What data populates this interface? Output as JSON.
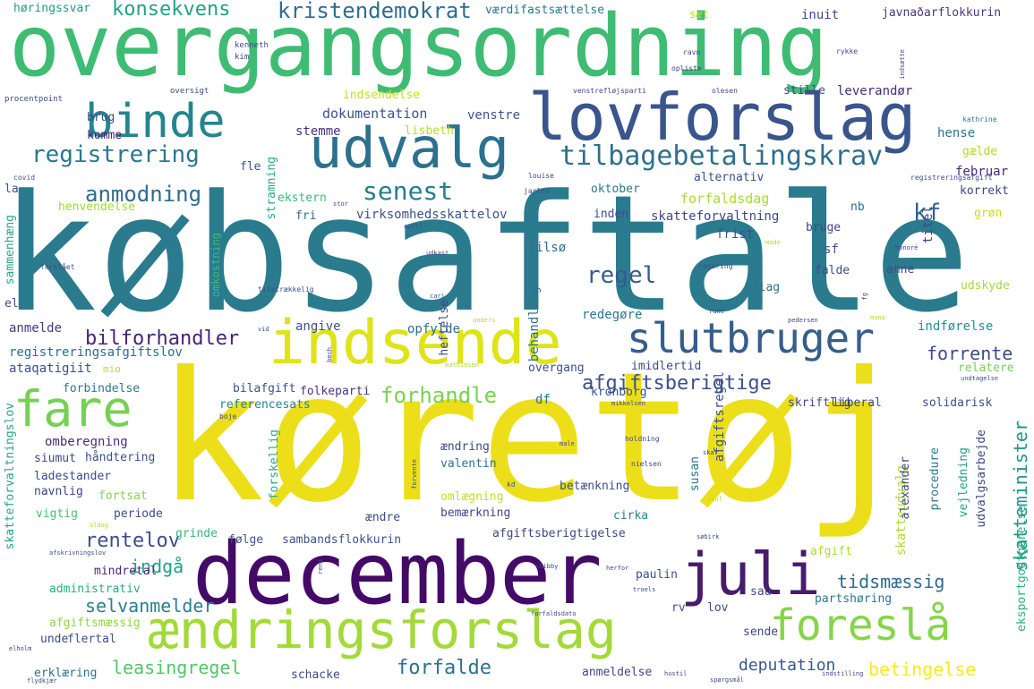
{
  "words": [
    {
      "text": "købsaftale",
      "color": "#2a7b8e"
    },
    {
      "text": "køretøj",
      "color": "#ecdf1a"
    },
    {
      "text": "overgangsordning",
      "color": "#3fbc73"
    },
    {
      "text": "december",
      "color": "#440a68"
    },
    {
      "text": "lovforslag",
      "color": "#39558c"
    },
    {
      "text": "ændringsforslag",
      "color": "#a2da37"
    },
    {
      "text": "indsende",
      "color": "#dfe318"
    },
    {
      "text": "udvalg",
      "color": "#2c718e"
    },
    {
      "text": "binde",
      "color": "#25858e"
    },
    {
      "text": "juli",
      "color": "#481b6d"
    },
    {
      "text": "foreslå",
      "color": "#86d549"
    },
    {
      "text": "slutbruger",
      "color": "#355e8d"
    },
    {
      "text": "fare",
      "color": "#75d054"
    },
    {
      "text": "tilbagebetalingskrav",
      "color": "#2d708e"
    },
    {
      "text": "registrering",
      "color": "#2a788e"
    },
    {
      "text": "kristendemokrat",
      "color": "#2e6e8e"
    },
    {
      "text": "konsekvens",
      "color": "#20a386"
    },
    {
      "text": "anmodning",
      "color": "#2f6c8e"
    },
    {
      "text": "senest",
      "color": "#287c8e"
    },
    {
      "text": "kf",
      "color": "#33628d"
    },
    {
      "text": "regel",
      "color": "#365c8d"
    },
    {
      "text": "forhandle",
      "color": "#7ad151"
    },
    {
      "text": "afgiftsberigtige",
      "color": "#3b518b"
    },
    {
      "text": "forrente",
      "color": "#3e4a89"
    },
    {
      "text": "bilforhandler",
      "color": "#482475"
    },
    {
      "text": "rentelov",
      "color": "#3d4d8a"
    },
    {
      "text": "indgå",
      "color": "#1fa187"
    },
    {
      "text": "selvanmelder",
      "color": "#27808e"
    },
    {
      "text": "tidsmæssig",
      "color": "#2f6b8e"
    },
    {
      "text": "skatteminister",
      "color": "#1f968b"
    },
    {
      "text": "leasingregel",
      "color": "#52c569"
    },
    {
      "text": "forfalde",
      "color": "#2d718e"
    },
    {
      "text": "betingelse",
      "color": "#fde725"
    },
    {
      "text": "deputation",
      "color": "#38588c"
    },
    {
      "text": "dokumentation",
      "color": "#3a548c"
    },
    {
      "text": "stemme",
      "color": "#472f7d"
    },
    {
      "text": "lisbeth",
      "color": "#b5de2b"
    },
    {
      "text": "venstre",
      "color": "#3b528b"
    },
    {
      "text": "høringssvar",
      "color": "#1e9b8a"
    },
    {
      "text": "værdifastsættelse",
      "color": "#2a788e"
    },
    {
      "text": "sæt",
      "color": "#b8de29"
    },
    {
      "text": "inuit",
      "color": "#3e4989"
    },
    {
      "text": "javnaðarflokkurin",
      "color": "#453781"
    },
    {
      "text": "indsendelse",
      "color": "#c2df23"
    },
    {
      "text": "stille",
      "color": "#404688"
    },
    {
      "text": "leverandør",
      "color": "#472c7a"
    },
    {
      "text": "brug",
      "color": "#3e4989"
    },
    {
      "text": "komme",
      "color": "#482173"
    },
    {
      "text": "hense",
      "color": "#2c738e"
    },
    {
      "text": "gælde",
      "color": "#addc30"
    },
    {
      "text": "februar",
      "color": "#482878"
    },
    {
      "text": "korrekt",
      "color": "#3f4788"
    },
    {
      "text": "alternativ",
      "color": "#3c4f8a"
    },
    {
      "text": "oktober",
      "color": "#2a788e"
    },
    {
      "text": "forfaldsdag",
      "color": "#a8db34"
    },
    {
      "text": "skatteforvaltning",
      "color": "#404588"
    },
    {
      "text": "virksomhedsskattelov",
      "color": "#3b528b"
    },
    {
      "text": "henvendelse",
      "color": "#9fda3a"
    },
    {
      "text": "ekstern",
      "color": "#3bbb75"
    },
    {
      "text": "stramning",
      "color": "#25ac82"
    },
    {
      "text": "fri",
      "color": "#2d708e"
    },
    {
      "text": "inden",
      "color": "#3e4c8a"
    },
    {
      "text": "titel",
      "color": "#3f4889"
    },
    {
      "text": "grøn",
      "color": "#c5e021"
    },
    {
      "text": "nb",
      "color": "#31688e"
    },
    {
      "text": "bruge",
      "color": "#3e4989"
    },
    {
      "text": "frist",
      "color": "#3b528b"
    },
    {
      "text": "sf",
      "color": "#3b528b"
    },
    {
      "text": "falde",
      "color": "#3e4a89"
    },
    {
      "text": "anne",
      "color": "#3e4a89"
    },
    {
      "text": "filsø",
      "color": "#2e6e8e"
    },
    {
      "text": "bilag",
      "color": "#2c728e"
    },
    {
      "text": "udskyde",
      "color": "#a5db36"
    },
    {
      "text": "heftelse",
      "color": "#404588"
    },
    {
      "text": "behandling",
      "color": "#2c728e"
    },
    {
      "text": "redegøre",
      "color": "#2a788e"
    },
    {
      "text": "indførelse",
      "color": "#20928c"
    },
    {
      "text": "angive",
      "color": "#3b528b"
    },
    {
      "text": "opfylde",
      "color": "#2e6f8e"
    },
    {
      "text": "anmelde",
      "color": "#453882"
    },
    {
      "text": "registreringsafgiftslov",
      "color": "#2e6d8e"
    },
    {
      "text": "ataqatigiit",
      "color": "#3c4f8a"
    },
    {
      "text": "overgang",
      "color": "#3c508b"
    },
    {
      "text": "imidlertid",
      "color": "#3f4889"
    },
    {
      "text": "relatere",
      "color": "#75d054"
    },
    {
      "text": "forbindelse",
      "color": "#2a788e"
    },
    {
      "text": "bilafgift",
      "color": "#3b528b"
    },
    {
      "text": "folkeparti",
      "color": "#453781"
    },
    {
      "text": "df",
      "color": "#2a768e"
    },
    {
      "text": "kronborg",
      "color": "#3b528b"
    },
    {
      "text": "referencesats",
      "color": "#25838e"
    },
    {
      "text": "skriftlig",
      "color": "#3e4989"
    },
    {
      "text": "liberal",
      "color": "#3f4788"
    },
    {
      "text": "solidarisk",
      "color": "#3c4f8a"
    },
    {
      "text": "skatteforvaltningslov",
      "color": "#22a785"
    },
    {
      "text": "omberegning",
      "color": "#472d7b"
    },
    {
      "text": "håndtering",
      "color": "#3b528b"
    },
    {
      "text": "siumut",
      "color": "#3f4889"
    },
    {
      "text": "ladestander",
      "color": "#3e4a89"
    },
    {
      "text": "navnlig",
      "color": "#3f4788"
    },
    {
      "text": "fortsat",
      "color": "#81d34d"
    },
    {
      "text": "vigtig",
      "color": "#4ac16d"
    },
    {
      "text": "periode",
      "color": "#3e4a89"
    },
    {
      "text": "ændring",
      "color": "#3e4989"
    },
    {
      "text": "valentin",
      "color": "#2c738e"
    },
    {
      "text": "omlægning",
      "color": "#c2df23"
    },
    {
      "text": "bemærkning",
      "color": "#3f4788"
    },
    {
      "text": "ændre",
      "color": "#3e4a89"
    },
    {
      "text": "cirka",
      "color": "#25858e"
    },
    {
      "text": "betænkning",
      "color": "#3d4e8a"
    },
    {
      "text": "afgiftsregel",
      "color": "#3b528b"
    },
    {
      "text": "skatteudvalg",
      "color": "#addc30"
    },
    {
      "text": "alexander",
      "color": "#3f4889"
    },
    {
      "text": "udvalgsarbejde",
      "color": "#3e4989"
    },
    {
      "text": "procedure",
      "color": "#2a788e"
    },
    {
      "text": "vejledning",
      "color": "#20a386"
    },
    {
      "text": "forskellig",
      "color": "#25ab82"
    },
    {
      "text": "susan",
      "color": "#2c738e"
    },
    {
      "text": "grinde",
      "color": "#35b779"
    },
    {
      "text": "følge",
      "color": "#3b528b"
    },
    {
      "text": "sambandsflokkurin",
      "color": "#3b528b"
    },
    {
      "text": "afgiftsberigtigelse",
      "color": "#3f4788"
    },
    {
      "text": "mindretal",
      "color": "#482677"
    },
    {
      "text": "administrativ",
      "color": "#29af7f"
    },
    {
      "text": "paulin",
      "color": "#3b528b"
    },
    {
      "text": "sau",
      "color": "#3f4788"
    },
    {
      "text": "partshøring",
      "color": "#2a788e"
    },
    {
      "text": "rv",
      "color": "#3b528b"
    },
    {
      "text": "lov",
      "color": "#3e4a89"
    },
    {
      "text": "afgift",
      "color": "#addc30"
    },
    {
      "text": "afgiftsmæssig",
      "color": "#8fd744"
    },
    {
      "text": "unde",
      "color": "#3e4a89"
    },
    {
      "text": "flertal",
      "color": "#3b528b"
    },
    {
      "text": "sende",
      "color": "#3f4788"
    },
    {
      "text": "erklæring",
      "color": "#2c738e"
    },
    {
      "text": "schacke",
      "color": "#3e4989"
    },
    {
      "text": "anmeldelse",
      "color": "#3f4788"
    },
    {
      "text": "eksportgodtgørelse",
      "color": "#29af7f"
    },
    {
      "text": "el",
      "color": "#3b528b"
    },
    {
      "text": "la",
      "color": "#3b528b"
    },
    {
      "text": "sammenhæng",
      "color": "#25ab82"
    },
    {
      "text": "omkostning",
      "color": "#3bbb75"
    },
    {
      "text": "fle",
      "color": "#3b528b"
    },
    {
      "text": "mio",
      "color": "#b5de2b"
    },
    {
      "text": "kenneth",
      "color": "#3e4a89"
    },
    {
      "text": "kim",
      "color": "#3e4a89"
    },
    {
      "text": "procentpoint",
      "color": "#3e4a89"
    },
    {
      "text": "oversigt",
      "color": "#3e4a89"
    },
    {
      "text": "venstrefløjsparti",
      "color": "#3f4788"
    },
    {
      "text": "olesen",
      "color": "#3f4788"
    },
    {
      "text": "ravn",
      "color": "#3f4889"
    },
    {
      "text": "opliste",
      "color": "#3f4788"
    },
    {
      "text": "rykke",
      "color": "#3e4a89"
    },
    {
      "text": "indsætte",
      "color": "#3e4a89"
    },
    {
      "text": "kathrine",
      "color": "#2a788e"
    },
    {
      "text": "covid",
      "color": "#3b528b"
    },
    {
      "text": "louise",
      "color": "#3f4788"
    },
    {
      "text": "jarlov",
      "color": "#3b528b"
    },
    {
      "text": "registreringsafgift",
      "color": "#3e4a89"
    },
    {
      "text": "stor",
      "color": "#3f4788"
    },
    {
      "text": "april",
      "color": "#3b528b"
    },
    {
      "text": "udkast",
      "color": "#3e4989"
    },
    {
      "text": "forslået",
      "color": "#3f4788"
    },
    {
      "text": "tilstrækkelig",
      "color": "#3e4a89"
    },
    {
      "text": "cari",
      "color": "#3e4a89"
    },
    {
      "text": "anders",
      "color": "#addc30"
    },
    {
      "text": "vid",
      "color": "#3b528b"
    },
    {
      "text": "regering",
      "color": "#3e4a89"
    },
    {
      "text": "made",
      "color": "#addc30"
    },
    {
      "text": "honoré",
      "color": "#3f4788"
    },
    {
      "text": "rune",
      "color": "#3e4a89"
    },
    {
      "text": "pedersen",
      "color": "#3f4788"
    },
    {
      "text": "mona",
      "color": "#addc30"
    },
    {
      "text": "fg",
      "color": "#3e4a89"
    },
    {
      "text": "bech",
      "color": "#3e4a89"
    },
    {
      "text": "mathiesen",
      "color": "#addc30"
    },
    {
      "text": "undtagelse",
      "color": "#3e4a89"
    },
    {
      "text": "mikkelsen",
      "color": "#3f4788"
    },
    {
      "text": "boje",
      "color": "#3f4788"
    },
    {
      "text": "male",
      "color": "#3f4788"
    },
    {
      "text": "holdning",
      "color": "#3f4788"
    },
    {
      "text": "skat",
      "color": "#3e4a89"
    },
    {
      "text": "nielsen",
      "color": "#3f4788"
    },
    {
      "text": "kd",
      "color": "#3b528b"
    },
    {
      "text": "forvente",
      "color": "#3e4a89"
    },
    {
      "text": "oldag",
      "color": "#addc30"
    },
    {
      "text": "afskrivningslov",
      "color": "#3e4a89"
    },
    {
      "text": "rena",
      "color": "#3e4a89"
    },
    {
      "text": "skibby",
      "color": "#3f4788"
    },
    {
      "text": "herfor",
      "color": "#3f4788"
    },
    {
      "text": "søbirk",
      "color": "#3e4a89"
    },
    {
      "text": "troels",
      "color": "#3f4788"
    },
    {
      "text": "forfaldsdato",
      "color": "#3e4a89"
    },
    {
      "text": "juul",
      "color": "#addc30"
    },
    {
      "text": "elholm",
      "color": "#3f4788"
    },
    {
      "text": "flydkjær",
      "color": "#3f4788"
    },
    {
      "text": "hustil",
      "color": "#3e4a89"
    },
    {
      "text": "spørgsmål",
      "color": "#3e4a89"
    },
    {
      "text": "indstilling",
      "color": "#3f4788"
    }
  ]
}
